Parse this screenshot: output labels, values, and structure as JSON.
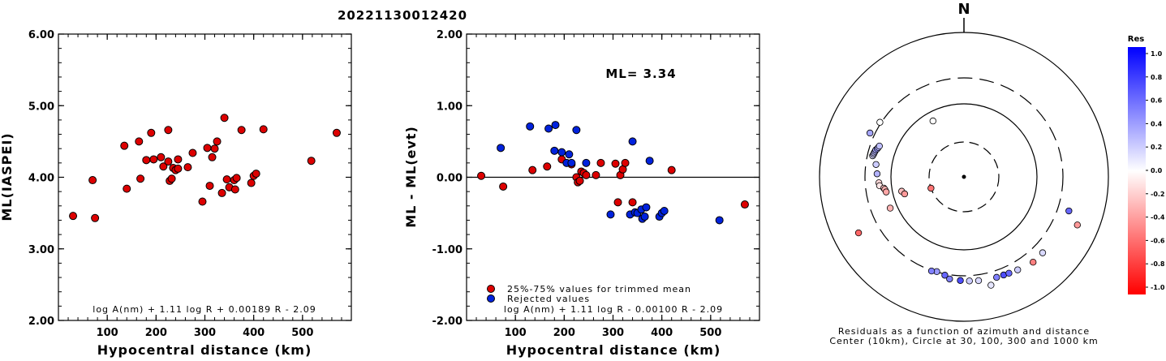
{
  "title": "20221130012420",
  "chart_data": [
    {
      "type": "scatter",
      "xlabel": "Hypocentral distance (km)",
      "ylabel": "ML(IASPEI)",
      "xlim": [
        0,
        600
      ],
      "ylim": [
        2.0,
        6.0
      ],
      "yticks": [
        "2.00",
        "3.00",
        "4.00",
        "5.00",
        "6.00"
      ],
      "xticks": [
        "100",
        "200",
        "300",
        "400",
        "500"
      ],
      "formula": "log A(nm) + 1.11 log R + 0.00189 R - 2.09",
      "marker_color": "#dd0000",
      "series": [
        {
          "points": [
            [
              30,
              3.46
            ],
            [
              70,
              3.96
            ],
            [
              75,
              3.43
            ],
            [
              135,
              4.44
            ],
            [
              140,
              3.84
            ],
            [
              165,
              4.5
            ],
            [
              168,
              3.98
            ],
            [
              180,
              4.24
            ],
            [
              190,
              4.62
            ],
            [
              195,
              4.25
            ],
            [
              210,
              4.28
            ],
            [
              215,
              4.15
            ],
            [
              225,
              4.66
            ],
            [
              225,
              4.22
            ],
            [
              228,
              3.95
            ],
            [
              232,
              3.98
            ],
            [
              235,
              4.13
            ],
            [
              240,
              4.1
            ],
            [
              245,
              4.12
            ],
            [
              245,
              4.25
            ],
            [
              265,
              4.14
            ],
            [
              275,
              4.34
            ],
            [
              295,
              3.66
            ],
            [
              305,
              4.41
            ],
            [
              310,
              3.88
            ],
            [
              315,
              4.28
            ],
            [
              320,
              4.4
            ],
            [
              325,
              4.5
            ],
            [
              335,
              3.78
            ],
            [
              340,
              4.83
            ],
            [
              345,
              3.97
            ],
            [
              350,
              3.86
            ],
            [
              360,
              3.96
            ],
            [
              362,
              3.83
            ],
            [
              365,
              3.99
            ],
            [
              375,
              4.66
            ],
            [
              395,
              3.92
            ],
            [
              400,
              4.02
            ],
            [
              405,
              4.05
            ],
            [
              420,
              4.67
            ],
            [
              518,
              4.23
            ],
            [
              570,
              4.62
            ]
          ]
        }
      ]
    },
    {
      "type": "scatter",
      "xlabel": "Hypocentral distance (km)",
      "ylabel": "ML - ML(evt)",
      "xlim": [
        0,
        600
      ],
      "ylim": [
        -2.0,
        2.0
      ],
      "yticks": [
        "-2.00",
        "-1.00",
        "0.00",
        "1.00",
        "2.00"
      ],
      "xticks": [
        "100",
        "200",
        "300",
        "400",
        "500"
      ],
      "annotation": "ML= 3.34",
      "formula": "log A(nm) + 1.11 log R - 0.00100 R - 2.09",
      "series": [
        {
          "name": "25%-75% values for trimmed mean",
          "color": "#dd0000",
          "points": [
            [
              30,
              0.02
            ],
            [
              75,
              -0.13
            ],
            [
              135,
              0.1
            ],
            [
              165,
              0.15
            ],
            [
              195,
              0.25
            ],
            [
              215,
              0.18
            ],
            [
              225,
              0.0
            ],
            [
              228,
              -0.07
            ],
            [
              232,
              -0.05
            ],
            [
              235,
              0.08
            ],
            [
              240,
              0.06
            ],
            [
              245,
              0.03
            ],
            [
              265,
              0.03
            ],
            [
              275,
              0.2
            ],
            [
              305,
              0.19
            ],
            [
              310,
              -0.35
            ],
            [
              315,
              0.03
            ],
            [
              320,
              0.11
            ],
            [
              325,
              0.2
            ],
            [
              340,
              -0.35
            ],
            [
              420,
              0.1
            ],
            [
              570,
              -0.38
            ]
          ]
        },
        {
          "name": "Rejected values",
          "color": "#0022dd",
          "points": [
            [
              70,
              0.41
            ],
            [
              130,
              0.71
            ],
            [
              168,
              0.68
            ],
            [
              180,
              0.37
            ],
            [
              182,
              0.73
            ],
            [
              195,
              0.35
            ],
            [
              205,
              0.2
            ],
            [
              210,
              0.32
            ],
            [
              215,
              0.2
            ],
            [
              225,
              0.66
            ],
            [
              245,
              0.2
            ],
            [
              295,
              -0.52
            ],
            [
              335,
              -0.52
            ],
            [
              340,
              0.5
            ],
            [
              345,
              -0.49
            ],
            [
              350,
              -0.5
            ],
            [
              358,
              -0.45
            ],
            [
              360,
              -0.58
            ],
            [
              365,
              -0.55
            ],
            [
              368,
              -0.42
            ],
            [
              375,
              0.23
            ],
            [
              395,
              -0.55
            ],
            [
              400,
              -0.5
            ],
            [
              405,
              -0.47
            ],
            [
              518,
              -0.6
            ]
          ]
        }
      ]
    },
    {
      "type": "scatter",
      "subtype": "polar",
      "north_label": "N",
      "caption_line1": "Residuals as a function of azimuth and distance",
      "caption_line2": "Center (10km), Circle at 30, 100, 300 and 1000 km",
      "colorbar_title": "Res",
      "colorbar_ticks": [
        "1.0",
        "0.8",
        "0.6",
        "0.4",
        "0.2",
        "0.0",
        "-0.2",
        "-0.4",
        "-0.6",
        "-0.8",
        "-1.0"
      ],
      "points": [
        {
          "az": 303,
          "dist": 310,
          "res": 0.0
        },
        {
          "az": 295,
          "dist": 340,
          "res": 0.35
        },
        {
          "az": 331,
          "dist": 75,
          "res": 0.0
        },
        {
          "az": 141,
          "dist": 400,
          "res": -0.5
        },
        {
          "az": 113,
          "dist": 570,
          "res": -0.4
        },
        {
          "az": 166,
          "dist": 420,
          "res": 0.1
        },
        {
          "az": 283,
          "dist": 240,
          "res": 0.15
        },
        {
          "az": 284,
          "dist": 235,
          "res": 0.2
        },
        {
          "az": 285,
          "dist": 232,
          "res": 0.25
        },
        {
          "az": 286,
          "dist": 228,
          "res": 0.3
        },
        {
          "az": 287,
          "dist": 225,
          "res": 0.35
        },
        {
          "az": 288,
          "dist": 215,
          "res": 0.4
        },
        {
          "az": 289,
          "dist": 210,
          "res": 0.3
        },
        {
          "az": 290,
          "dist": 205,
          "res": 0.25
        },
        {
          "az": 278,
          "dist": 195,
          "res": 0.2
        },
        {
          "az": 272,
          "dist": 180,
          "res": 0.3
        },
        {
          "az": 266,
          "dist": 168,
          "res": -0.15
        },
        {
          "az": 264,
          "dist": 165,
          "res": -0.1
        },
        {
          "az": 262,
          "dist": 140,
          "res": -0.2
        },
        {
          "az": 261,
          "dist": 135,
          "res": -0.3
        },
        {
          "az": 259,
          "dist": 130,
          "res": -0.35
        },
        {
          "az": 257,
          "dist": 75,
          "res": -0.25
        },
        {
          "az": 254,
          "dist": 70,
          "res": -0.4
        },
        {
          "az": 251,
          "dist": 30,
          "res": -0.55
        },
        {
          "az": 247,
          "dist": 135,
          "res": -0.3
        },
        {
          "az": 242,
          "dist": 515,
          "res": -0.6
        },
        {
          "az": 196,
          "dist": 295,
          "res": 0.4
        },
        {
          "az": 199,
          "dist": 305,
          "res": 0.5
        },
        {
          "az": 191,
          "dist": 310,
          "res": 0.6
        },
        {
          "az": 188,
          "dist": 335,
          "res": 0.5
        },
        {
          "az": 182,
          "dist": 340,
          "res": 0.7
        },
        {
          "az": 177,
          "dist": 345,
          "res": 0.2
        },
        {
          "az": 172,
          "dist": 350,
          "res": 0.15
        },
        {
          "az": 162,
          "dist": 358,
          "res": 0.5
        },
        {
          "az": 158,
          "dist": 360,
          "res": 0.7
        },
        {
          "az": 155,
          "dist": 365,
          "res": 0.6
        },
        {
          "az": 150,
          "dist": 375,
          "res": 0.2
        },
        {
          "az": 134,
          "dist": 395,
          "res": 0.15
        },
        {
          "az": 108,
          "dist": 405,
          "res": 0.6
        }
      ]
    }
  ]
}
